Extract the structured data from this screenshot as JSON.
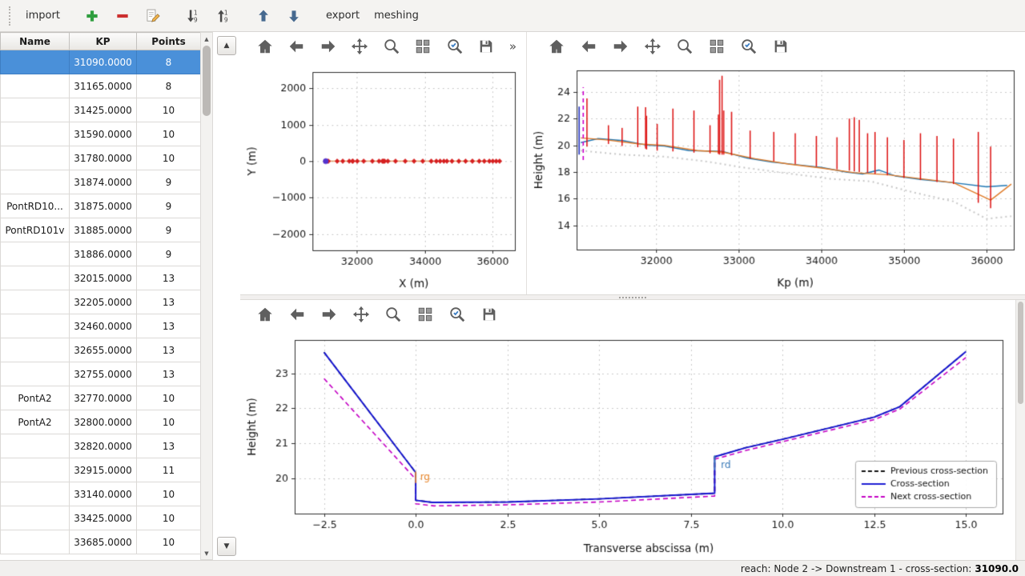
{
  "app_toolbar": {
    "import_label": "import",
    "export_label": "export",
    "meshing_label": "meshing"
  },
  "table": {
    "columns": [
      "Name",
      "KP",
      "Points"
    ],
    "rows": [
      {
        "name": "",
        "kp": "31090.0000",
        "points": "8",
        "selected": true
      },
      {
        "name": "",
        "kp": "31165.0000",
        "points": "8"
      },
      {
        "name": "",
        "kp": "31425.0000",
        "points": "10"
      },
      {
        "name": "",
        "kp": "31590.0000",
        "points": "10"
      },
      {
        "name": "",
        "kp": "31780.0000",
        "points": "10"
      },
      {
        "name": "",
        "kp": "31874.0000",
        "points": "9"
      },
      {
        "name": "PontRD10...",
        "kp": "31875.0000",
        "points": "9"
      },
      {
        "name": "PontRD101v",
        "kp": "31885.0000",
        "points": "9"
      },
      {
        "name": "",
        "kp": "31886.0000",
        "points": "9"
      },
      {
        "name": "",
        "kp": "32015.0000",
        "points": "13"
      },
      {
        "name": "",
        "kp": "32205.0000",
        "points": "13"
      },
      {
        "name": "",
        "kp": "32460.0000",
        "points": "13"
      },
      {
        "name": "",
        "kp": "32655.0000",
        "points": "13"
      },
      {
        "name": "",
        "kp": "32755.0000",
        "points": "13"
      },
      {
        "name": "PontA2",
        "kp": "32770.0000",
        "points": "10"
      },
      {
        "name": "PontA2",
        "kp": "32800.0000",
        "points": "10"
      },
      {
        "name": "",
        "kp": "32820.0000",
        "points": "13"
      },
      {
        "name": "",
        "kp": "32915.0000",
        "points": "11"
      },
      {
        "name": "",
        "kp": "33140.0000",
        "points": "10"
      },
      {
        "name": "",
        "kp": "33425.0000",
        "points": "10"
      },
      {
        "name": "",
        "kp": "33685.0000",
        "points": "10"
      }
    ]
  },
  "mpl_toolbar": {
    "overflow_label": "»",
    "buttons": [
      {
        "name": "home"
      },
      {
        "name": "back"
      },
      {
        "name": "forward"
      },
      {
        "name": "pan"
      },
      {
        "name": "zoom"
      },
      {
        "name": "subplots"
      },
      {
        "name": "customize"
      },
      {
        "name": "save"
      }
    ]
  },
  "status_bar": {
    "prefix": "reach: Node 2 -> Downstream 1 - cross-section: ",
    "value": "31090.0"
  },
  "chart_data": [
    {
      "type": "scatter",
      "title": "",
      "xlabel": "X (m)",
      "ylabel": "Y (m)",
      "xlim": [
        30700,
        36650
      ],
      "ylim": [
        -2450,
        2450
      ],
      "xticks": [
        32000,
        34000,
        36000
      ],
      "xtick_labels": [
        "32000",
        "34000",
        "36000"
      ],
      "yticks": [
        -2000,
        -1000,
        0,
        1000,
        2000
      ],
      "ytick_labels": [
        "−2000",
        "−1000",
        "0",
        "1000",
        "2000"
      ],
      "grid": true,
      "margins": {
        "l": 90,
        "r": 14,
        "t": 14,
        "b": 56
      },
      "series": [
        {
          "name": "reach-trace-line",
          "type": "line",
          "color": "#e07b28",
          "width": 1.2,
          "x": [
            31090,
            36200
          ],
          "y": [
            0,
            0
          ]
        },
        {
          "name": "cross-section-markers",
          "type": "scatter",
          "marker": "diamond",
          "size": 3.2,
          "color": "#d62020",
          "x": [
            31090,
            31165,
            31425,
            31590,
            31780,
            31874,
            31885,
            32015,
            32205,
            32460,
            32655,
            32755,
            32770,
            32800,
            32820,
            32915,
            33140,
            33425,
            33685,
            33940,
            34190,
            34340,
            34450,
            34560,
            34650,
            34800,
            35000,
            35200,
            35400,
            35600,
            35750,
            35900,
            36000,
            36100,
            36200
          ],
          "y": 0
        },
        {
          "name": "selected-section-marker",
          "type": "scatter",
          "marker": "circle",
          "size": 3.5,
          "color": "#5533cc",
          "x": [
            31090
          ],
          "y": 0
        }
      ]
    },
    {
      "type": "line",
      "title": "",
      "xlabel": "Kp (m)",
      "ylabel": "Height (m)",
      "xlim": [
        31040,
        36330
      ],
      "ylim": [
        12.2,
        25.6
      ],
      "xticks": [
        32000,
        33000,
        34000,
        35000,
        36000
      ],
      "xtick_labels": [
        "32000",
        "33000",
        "34000",
        "35000",
        "36000"
      ],
      "yticks": [
        14,
        16,
        18,
        20,
        22,
        24
      ],
      "ytick_labels": [
        "14",
        "16",
        "18",
        "20",
        "22",
        "24"
      ],
      "grid": true,
      "margins": {
        "l": 62,
        "r": 14,
        "t": 12,
        "b": 56
      },
      "series": [
        {
          "name": "bed-profile-dotted",
          "type": "line",
          "color": "#c9c9c9",
          "width": 2,
          "dash": [
            2,
            4
          ],
          "x": [
            31090,
            31600,
            32100,
            32600,
            33100,
            33600,
            34100,
            34600,
            35100,
            35600,
            36000,
            36300
          ],
          "y": [
            19.6,
            19.3,
            19.15,
            18.8,
            18.3,
            17.9,
            17.5,
            17.3,
            16.5,
            15.8,
            14.5,
            14.7
          ]
        },
        {
          "name": "left-bank-line",
          "type": "line",
          "color": "#1f77b4",
          "width": 1.4,
          "x": [
            31090,
            31300,
            31600,
            31900,
            32100,
            32400,
            32800,
            33100,
            33400,
            33700,
            34000,
            34300,
            34500,
            34700,
            34900,
            35200,
            35600,
            36000,
            36250
          ],
          "y": [
            20.2,
            20.5,
            20.35,
            20.0,
            19.95,
            19.6,
            19.55,
            19.05,
            18.75,
            18.55,
            18.35,
            18.0,
            17.85,
            18.15,
            17.7,
            17.45,
            17.2,
            16.9,
            17.0
          ]
        },
        {
          "name": "right-bank-line",
          "type": "line",
          "color": "#e07b28",
          "width": 1.4,
          "x": [
            31090,
            31400,
            31800,
            32100,
            32500,
            32800,
            33200,
            33600,
            34000,
            34400,
            34800,
            35200,
            35600,
            36050,
            36300
          ],
          "y": [
            20.55,
            20.4,
            20.1,
            20.0,
            19.6,
            19.5,
            19.0,
            18.6,
            18.3,
            17.95,
            17.8,
            17.5,
            17.2,
            15.9,
            17.1
          ]
        },
        {
          "name": "section-extent-lines",
          "type": "vlines",
          "color": "#dd1111",
          "width": 1.5,
          "segments": [
            [
              31165,
              19.9,
              23.5
            ],
            [
              31425,
              20.1,
              21.5
            ],
            [
              31590,
              19.95,
              21.3
            ],
            [
              31780,
              19.85,
              22.9
            ],
            [
              31874,
              19.75,
              22.85
            ],
            [
              31886,
              19.7,
              22.2
            ],
            [
              32015,
              19.6,
              21.6
            ],
            [
              32205,
              19.55,
              22.75
            ],
            [
              32460,
              19.45,
              22.6
            ],
            [
              32655,
              19.4,
              21.5
            ],
            [
              32755,
              19.35,
              22.3
            ],
            [
              32770,
              19.3,
              24.9
            ],
            [
              32800,
              19.3,
              25.2
            ],
            [
              32820,
              19.3,
              22.6
            ],
            [
              32915,
              19.25,
              22.5
            ],
            [
              33140,
              19.0,
              21.1
            ],
            [
              33425,
              18.8,
              21.0
            ],
            [
              33685,
              18.6,
              20.9
            ],
            [
              33940,
              18.4,
              20.7
            ],
            [
              34190,
              18.2,
              20.6
            ],
            [
              34340,
              18.1,
              22.0
            ],
            [
              34400,
              18.05,
              22.1
            ],
            [
              34460,
              18.0,
              21.9
            ],
            [
              34560,
              17.95,
              20.9
            ],
            [
              34650,
              17.85,
              21.0
            ],
            [
              34800,
              17.75,
              20.6
            ],
            [
              35000,
              17.55,
              20.4
            ],
            [
              35200,
              17.4,
              20.9
            ],
            [
              35400,
              17.25,
              20.7
            ],
            [
              35600,
              17.1,
              20.5
            ],
            [
              35900,
              15.7,
              21.0
            ],
            [
              36050,
              15.3,
              19.9
            ]
          ]
        },
        {
          "name": "selected-section-line",
          "type": "vlines",
          "color": "#cc00cc",
          "width": 1.6,
          "dash": [
            5,
            4
          ],
          "segments": [
            [
              31120,
              18.9,
              24.35
            ]
          ]
        },
        {
          "name": "current-section-edge-line",
          "type": "vlines",
          "color": "#2233bb",
          "width": 1.6,
          "segments": [
            [
              31070,
              19.3,
              22.9
            ]
          ]
        }
      ]
    },
    {
      "type": "line",
      "title": "",
      "xlabel": "Transverse abscissa (m)",
      "ylabel": "Height (m)",
      "xlim": [
        -3.3,
        16.0
      ],
      "ylim": [
        19.0,
        23.95
      ],
      "xticks": [
        -2.5,
        0.0,
        2.5,
        5.0,
        7.5,
        10.0,
        12.5,
        15.0
      ],
      "xtick_labels": [
        "−2.5",
        "0.0",
        "2.5",
        "5.0",
        "7.5",
        "10.0",
        "12.5",
        "15.0"
      ],
      "yticks": [
        20,
        21,
        22,
        23
      ],
      "ytick_labels": [
        "20",
        "21",
        "22",
        "23"
      ],
      "grid": true,
      "margins": {
        "l": 68,
        "r": 16,
        "t": 14,
        "b": 58
      },
      "series": [
        {
          "name": "previous-cross-section",
          "type": "line",
          "color": "#111111",
          "width": 1.6,
          "dash": [
            6,
            4
          ],
          "x": [
            -2.5,
            0.0,
            0.0,
            0.45,
            2.5,
            5.0,
            8.15,
            8.15,
            9.0,
            10.0,
            12.5,
            13.2,
            15.0
          ],
          "y": [
            23.6,
            20.17,
            19.38,
            19.32,
            19.33,
            19.42,
            19.58,
            20.62,
            20.88,
            21.12,
            21.75,
            22.05,
            23.62
          ]
        },
        {
          "name": "next-cross-section",
          "type": "line",
          "color": "#c400c4",
          "width": 1.6,
          "dash": [
            6,
            4
          ],
          "x": [
            -2.5,
            0.0,
            0.0,
            0.5,
            2.5,
            5.0,
            8.15,
            8.15,
            9.0,
            10.0,
            12.5,
            13.2,
            15.0
          ],
          "y": [
            22.85,
            19.98,
            19.28,
            19.22,
            19.25,
            19.33,
            19.5,
            20.55,
            20.8,
            21.05,
            21.68,
            21.98,
            23.45
          ]
        },
        {
          "name": "cross-section",
          "type": "line",
          "color": "#1414d2",
          "width": 1.9,
          "x": [
            -2.5,
            0.0,
            0.0,
            0.45,
            2.5,
            5.0,
            8.15,
            8.15,
            9.0,
            10.0,
            12.5,
            13.2,
            15.0
          ],
          "y": [
            23.6,
            20.17,
            19.38,
            19.32,
            19.33,
            19.42,
            19.58,
            20.62,
            20.88,
            21.12,
            21.75,
            22.05,
            23.62
          ]
        },
        {
          "name": "rg-bank-marker",
          "type": "vlines",
          "color": "#e8862a",
          "width": 1.6,
          "segments": [
            [
              0.0,
              19.87,
              20.2
            ]
          ]
        },
        {
          "name": "rd-bank-marker",
          "type": "vlines",
          "color": "#3a7ab8",
          "width": 1.6,
          "segments": [
            [
              8.15,
              20.25,
              20.66
            ]
          ]
        },
        {
          "name": "bank-labels",
          "type": "text",
          "items": [
            {
              "x": 0.12,
              "y": 20.02,
              "text": "rg",
              "color": "#e8862a"
            },
            {
              "x": 8.32,
              "y": 20.38,
              "text": "rd",
              "color": "#3a7ab8"
            }
          ]
        }
      ],
      "legend": {
        "loc": "lower-right",
        "entries": [
          {
            "label": "Previous cross-section",
            "color": "#111111",
            "dash": [
              5,
              3
            ]
          },
          {
            "label": "Cross-section",
            "color": "#1414d2",
            "dash": null
          },
          {
            "label": "Next cross-section",
            "color": "#c400c4",
            "dash": [
              5,
              3
            ]
          }
        ]
      }
    }
  ]
}
